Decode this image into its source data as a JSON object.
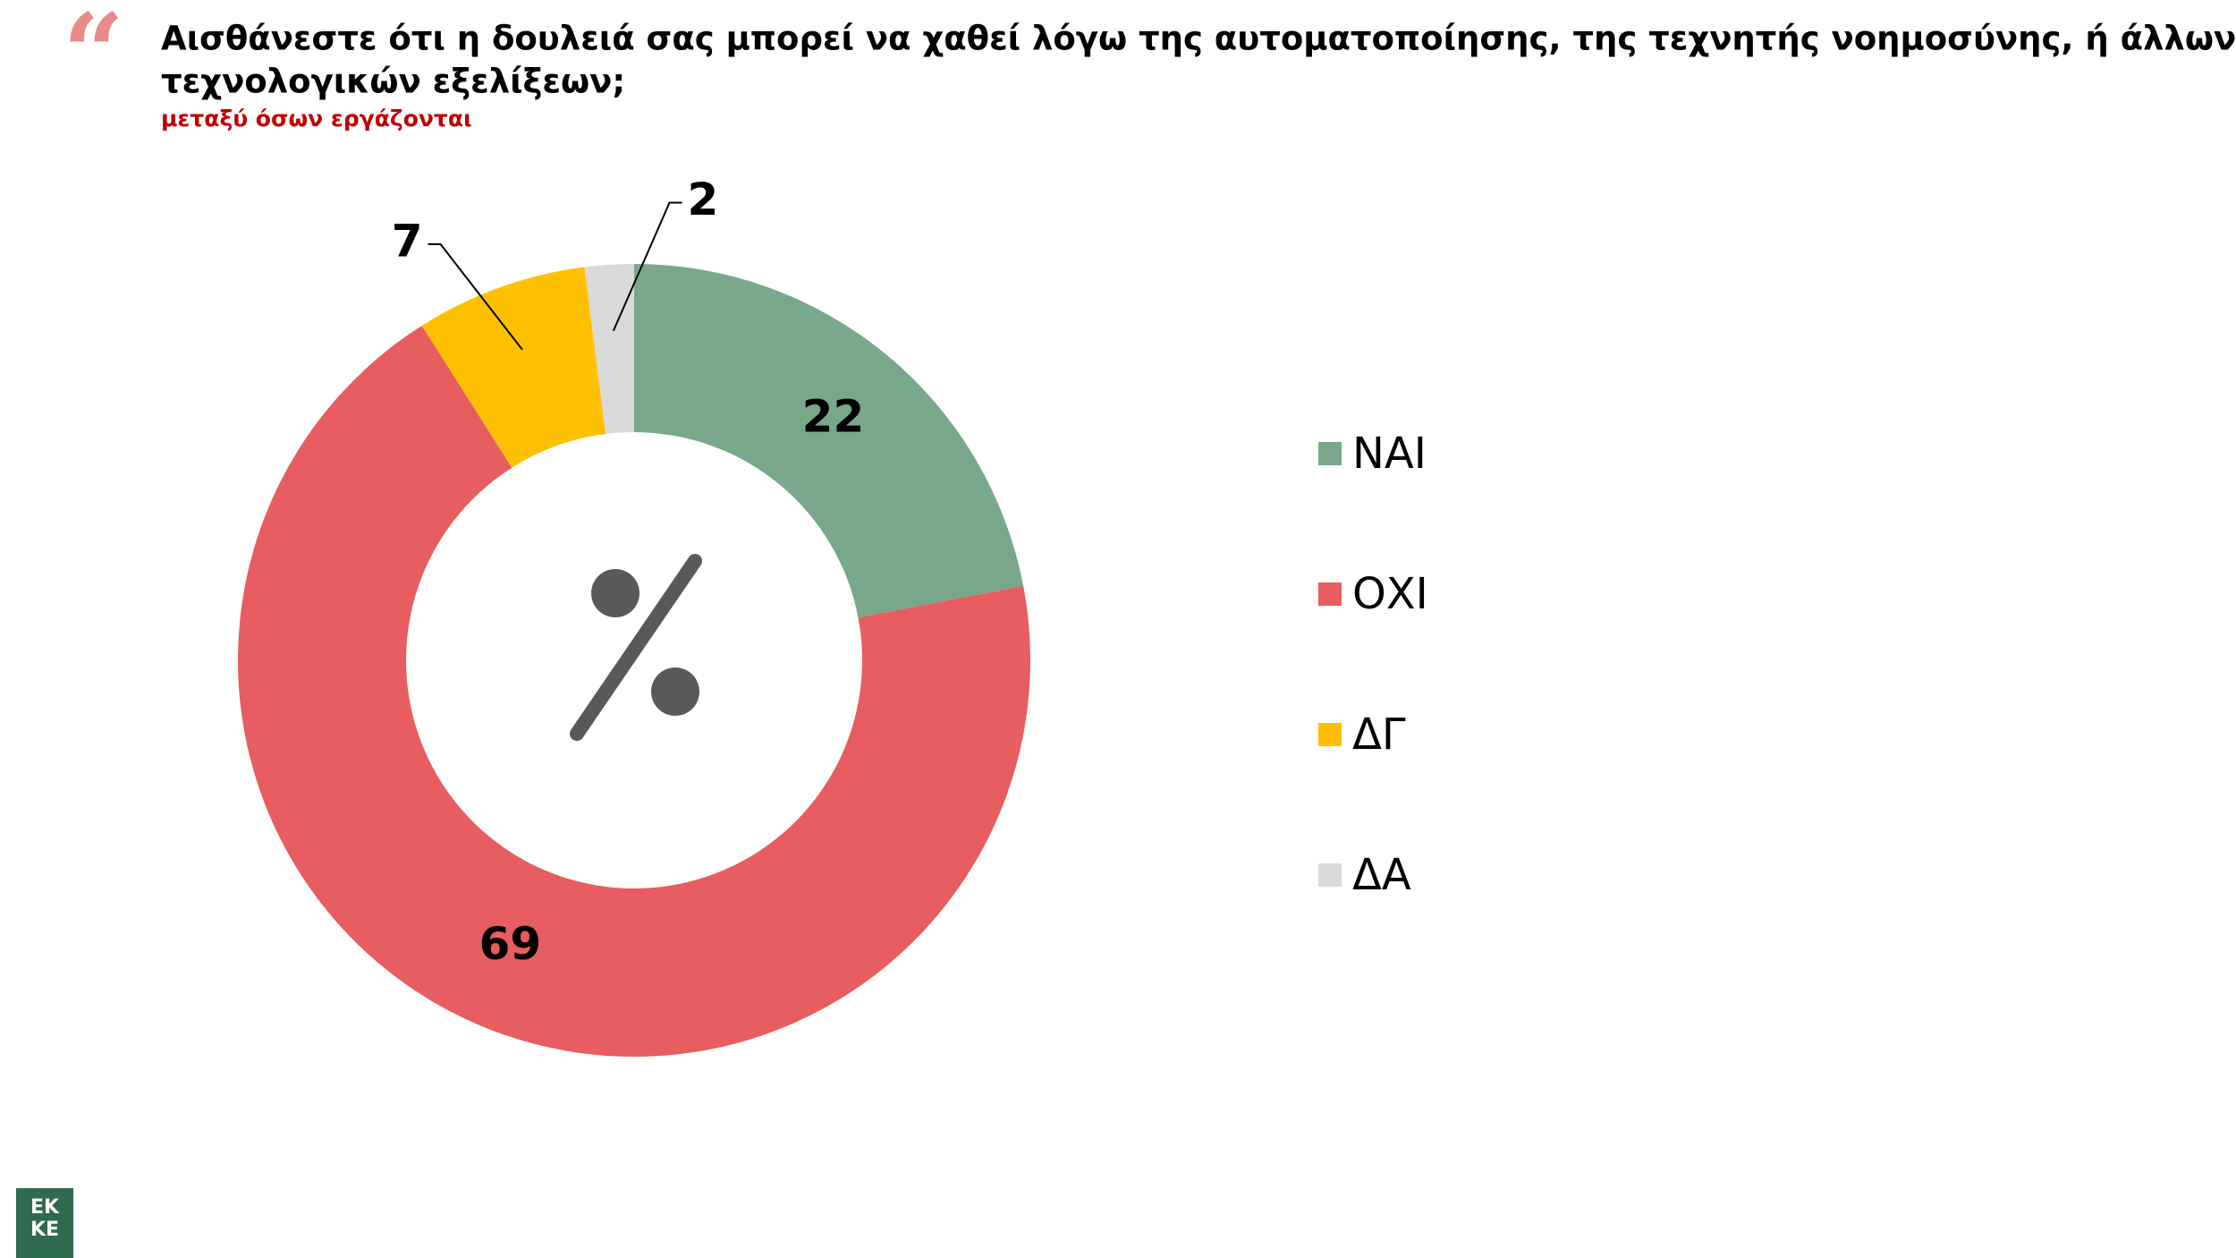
{
  "chart_data": {
    "type": "donut",
    "title": [
      "Αισθάνεστε ότι η δουλειά σας μπορεί να χαθεί λόγω της αυτοματοποίησης, της τεχνητής νοημοσύνης, ή άλλων",
      "τεχνολογικών εξελίξεων;"
    ],
    "subtitle": "μεταξύ όσων εργάζονται",
    "categories": [
      "ΝΑΙ",
      "ΟΧΙ",
      "ΔΓ",
      "ΔΑ"
    ],
    "values": [
      22,
      69,
      7,
      2
    ],
    "colors": [
      "#78a88a",
      "#e85d5f",
      "#ffc000",
      "#d9d9d9"
    ],
    "legend": "right"
  },
  "logo_text": [
    "EK",
    "KE"
  ]
}
